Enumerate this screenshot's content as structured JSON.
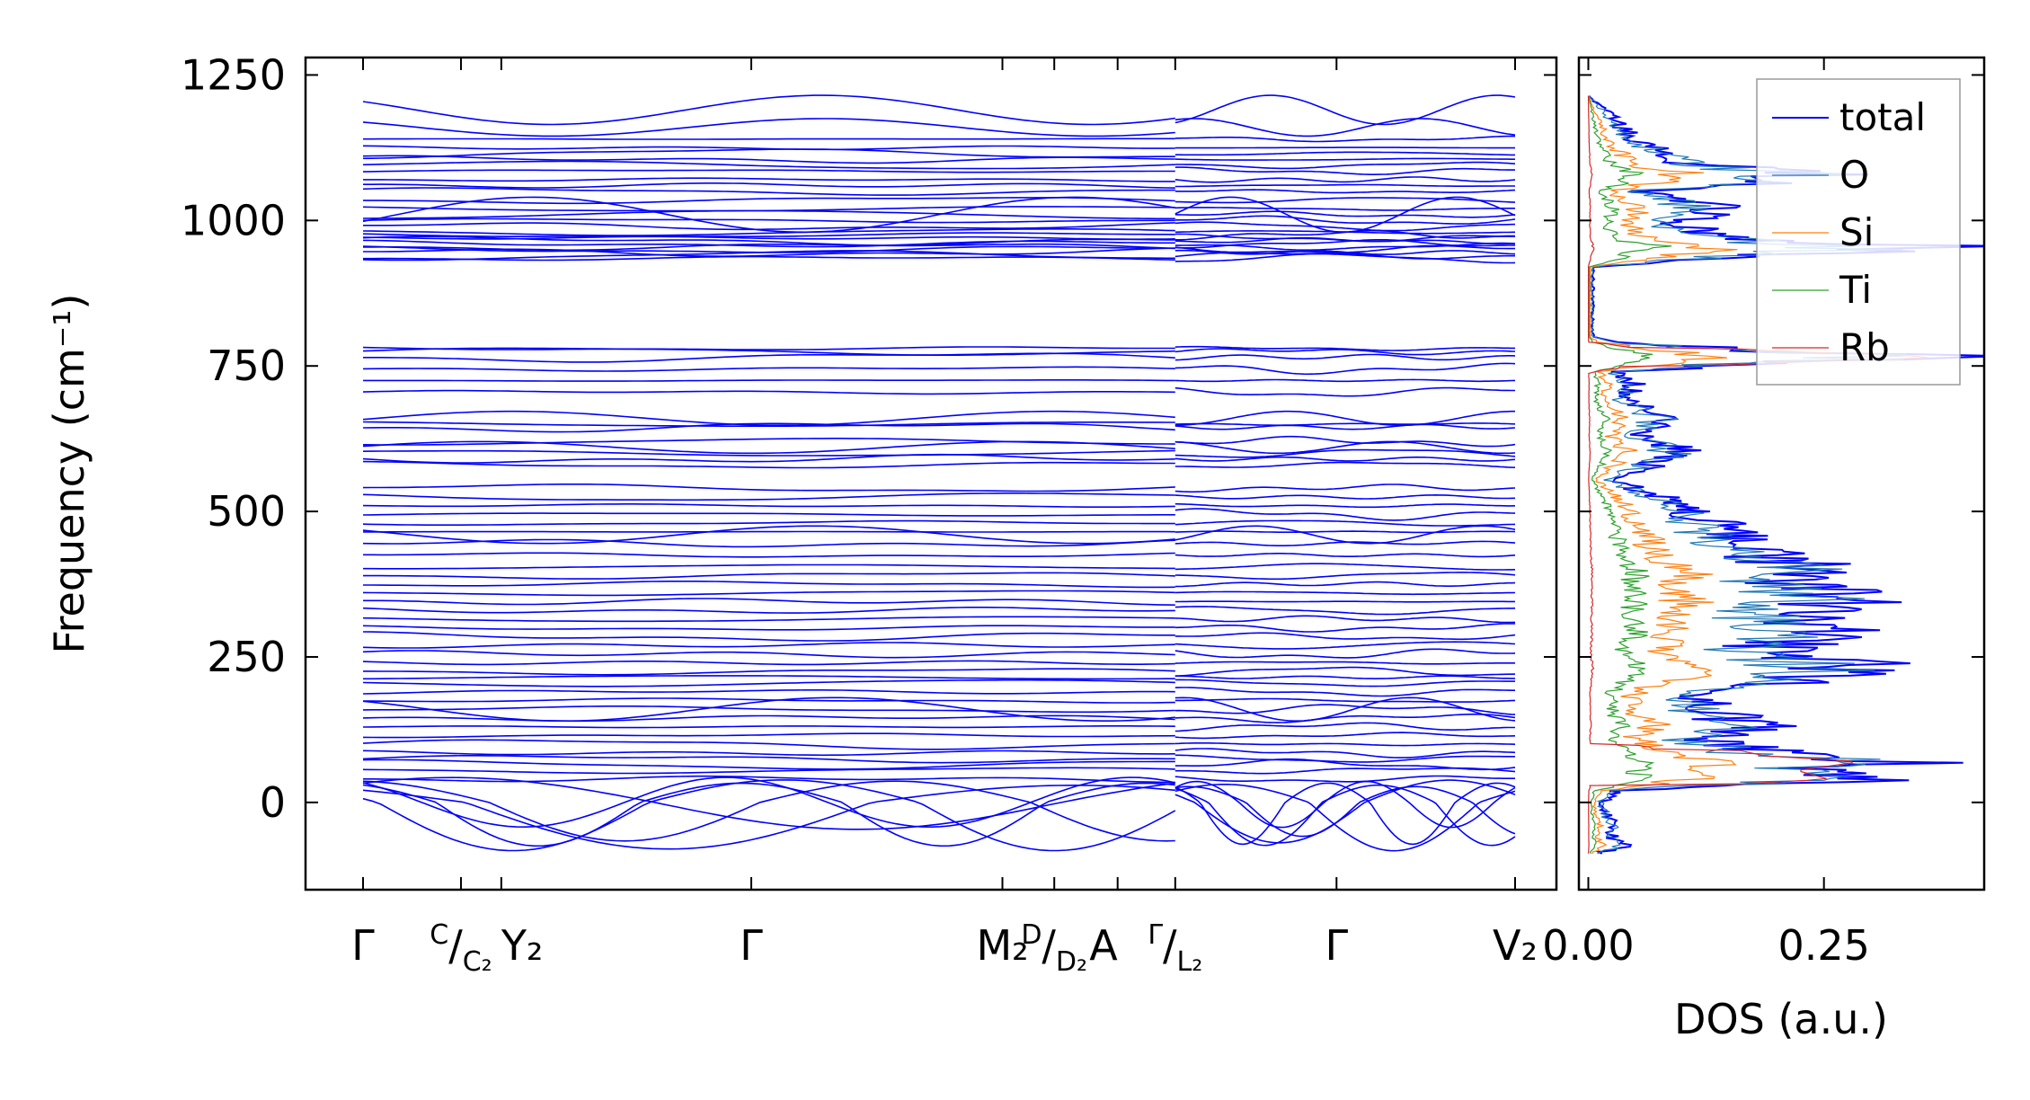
{
  "chart_data": [
    {
      "type": "line",
      "title": "",
      "xlabel": "",
      "ylabel": "Frequency (cm⁻¹)",
      "ylim": [
        -150,
        1280
      ],
      "yticks": [
        0,
        250,
        500,
        750,
        1000,
        1250
      ],
      "ytick_labels": [
        "0",
        "250",
        "500",
        "750",
        "1000",
        "1250"
      ],
      "series_color": "#0000ff",
      "path_segments": [
        {
          "name": "segment-1",
          "start": 0.0,
          "end": 0.705
        },
        {
          "name": "segment-2",
          "start": 0.705,
          "end": 1.0
        }
      ],
      "xtick_positions": [
        0.0,
        0.085,
        0.12,
        0.337,
        0.555,
        0.6,
        0.655,
        0.705,
        0.845,
        1.0
      ],
      "kpath_labels": [
        {
          "main": "Γ",
          "sub": "",
          "sup": "",
          "pos": 0.0,
          "anchor": "middle"
        },
        {
          "main": "",
          "sup": "C",
          "sub": "C₂",
          "pos": 0.085,
          "anchor": "middle",
          "slash": true
        },
        {
          "main": "Y₂",
          "sub": "",
          "sup": "",
          "pos": 0.12,
          "anchor": "start"
        },
        {
          "main": "Γ",
          "sub": "",
          "sup": "",
          "pos": 0.337,
          "anchor": "middle"
        },
        {
          "main": "M₂",
          "sub": "",
          "sup": "",
          "pos": 0.555,
          "anchor": "middle"
        },
        {
          "main": "",
          "sup": "D",
          "sub": "D₂",
          "pos": 0.6,
          "anchor": "middle",
          "slash": true
        },
        {
          "main": "A",
          "sub": "",
          "sup": "",
          "pos": 0.655,
          "anchor": "end"
        },
        {
          "main": "",
          "sup": "Γ",
          "sub": "L₂",
          "pos": 0.705,
          "anchor": "middle",
          "slash": true
        },
        {
          "main": "Γ",
          "sub": "",
          "sup": "",
          "pos": 0.845,
          "anchor": "middle"
        },
        {
          "main": "V₂",
          "sub": "",
          "sup": "",
          "pos": 1.0,
          "anchor": "middle"
        }
      ],
      "bands_flat": [
        935,
        940,
        945,
        950,
        955,
        960,
        965,
        970,
        975,
        980,
        990,
        1000,
        1010,
        1020,
        1035,
        1050,
        1060,
        1070,
        1085,
        1095,
        1105,
        1115,
        1125,
        1140,
        705,
        725,
        745,
        765,
        775,
        780,
        580,
        590,
        600,
        620,
        645,
        650,
        40,
        55,
        65,
        75,
        85,
        100,
        115,
        130,
        145,
        160,
        175,
        190,
        205,
        215,
        225,
        240,
        255,
        270,
        285,
        300,
        315,
        330,
        345,
        360,
        375,
        390,
        405,
        425,
        445,
        465,
        480,
        495,
        510,
        525,
        540
      ],
      "bands_dispersive": [
        {
          "base": 1190,
          "amp": 25
        },
        {
          "base": 1160,
          "amp": 15
        },
        {
          "base": 1010,
          "amp": 30
        },
        {
          "base": 660,
          "amp": 12
        },
        {
          "base": 610,
          "amp": 10
        },
        {
          "base": 460,
          "amp": 15
        },
        {
          "base": 160,
          "amp": 20
        }
      ],
      "imaginary_modes": {
        "min": -85,
        "max": 45
      }
    },
    {
      "type": "line",
      "title": "",
      "xlabel": "DOS (a.u.)",
      "ylabel": "",
      "xlim": [
        -0.01,
        0.42
      ],
      "ylim": [
        -150,
        1280
      ],
      "xticks": [
        0.0,
        0.25
      ],
      "xtick_labels": [
        "0.00",
        "0.25"
      ],
      "legend": {
        "position": "top-right"
      },
      "series": [
        {
          "name": "total",
          "color": "#0000ff",
          "scale": 1.0
        },
        {
          "name": "O",
          "color": "#1f77b4",
          "scale": 0.85
        },
        {
          "name": "Si",
          "color": "#ff7f0e",
          "scale": 0.4
        },
        {
          "name": "Ti",
          "color": "#2ca02c",
          "scale": 0.2
        },
        {
          "name": "Rb",
          "color": "#d62728",
          "scale": 0.3
        }
      ],
      "total_profile": [
        [
          -85,
          0.015
        ],
        [
          -75,
          0.04
        ],
        [
          -60,
          0.025
        ],
        [
          -40,
          0.03
        ],
        [
          -20,
          0.02
        ],
        [
          0,
          0.015
        ],
        [
          20,
          0.03
        ],
        [
          40,
          0.3
        ],
        [
          55,
          0.26
        ],
        [
          70,
          0.34
        ],
        [
          80,
          0.22
        ],
        [
          95,
          0.17
        ],
        [
          110,
          0.12
        ],
        [
          130,
          0.18
        ],
        [
          150,
          0.14
        ],
        [
          185,
          0.11
        ],
        [
          210,
          0.22
        ],
        [
          230,
          0.3
        ],
        [
          260,
          0.18
        ],
        [
          290,
          0.25
        ],
        [
          320,
          0.21
        ],
        [
          350,
          0.27
        ],
        [
          380,
          0.22
        ],
        [
          395,
          0.27
        ],
        [
          420,
          0.19
        ],
        [
          450,
          0.16
        ],
        [
          480,
          0.13
        ],
        [
          510,
          0.1
        ],
        [
          540,
          0.05
        ],
        [
          555,
          0.02
        ],
        [
          575,
          0.06
        ],
        [
          600,
          0.11
        ],
        [
          630,
          0.06
        ],
        [
          660,
          0.09
        ],
        [
          690,
          0.04
        ],
        [
          720,
          0.05
        ],
        [
          740,
          0.03
        ],
        [
          755,
          0.2
        ],
        [
          765,
          0.4
        ],
        [
          775,
          0.22
        ],
        [
          790,
          0.03
        ],
        [
          800,
          0.005
        ],
        [
          920,
          0.005
        ],
        [
          930,
          0.1
        ],
        [
          945,
          0.26
        ],
        [
          955,
          0.36
        ],
        [
          965,
          0.19
        ],
        [
          980,
          0.12
        ],
        [
          1000,
          0.1
        ],
        [
          1020,
          0.14
        ],
        [
          1050,
          0.06
        ],
        [
          1065,
          0.18
        ],
        [
          1080,
          0.26
        ],
        [
          1095,
          0.12
        ],
        [
          1120,
          0.08
        ],
        [
          1140,
          0.05
        ],
        [
          1170,
          0.03
        ],
        [
          1200,
          0.01
        ],
        [
          1215,
          0.0
        ]
      ]
    }
  ]
}
